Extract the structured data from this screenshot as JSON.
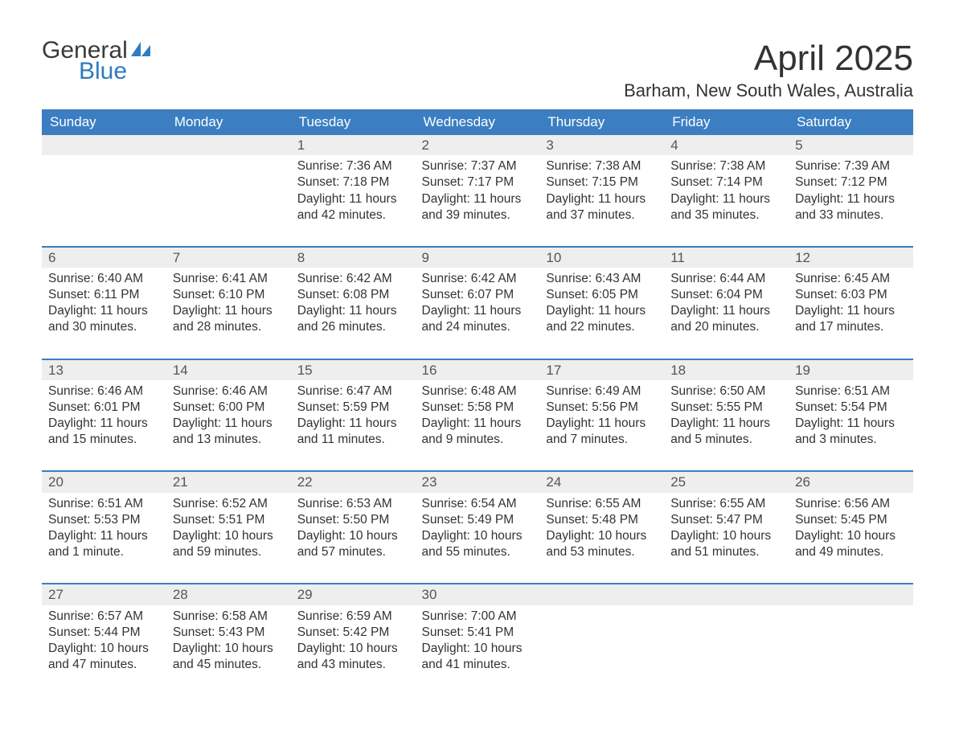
{
  "logo": {
    "word1": "General",
    "word2": "Blue"
  },
  "title": "April 2025",
  "location": "Barham, New South Wales, Australia",
  "colors": {
    "header_bg": "#3b7ec2",
    "header_fg": "#ffffff",
    "daynum_bg": "#eeeeee",
    "week_divider": "#3b7ec2",
    "text": "#333333",
    "logo_gray": "#3a3a3a",
    "logo_blue": "#2f7bbf",
    "page_bg": "#ffffff"
  },
  "weekdays": [
    "Sunday",
    "Monday",
    "Tuesday",
    "Wednesday",
    "Thursday",
    "Friday",
    "Saturday"
  ],
  "weeks": [
    [
      {
        "n": "",
        "d": ""
      },
      {
        "n": "",
        "d": ""
      },
      {
        "n": "1",
        "d": "Sunrise: 7:36 AM\nSunset: 7:18 PM\nDaylight: 11 hours and 42 minutes."
      },
      {
        "n": "2",
        "d": "Sunrise: 7:37 AM\nSunset: 7:17 PM\nDaylight: 11 hours and 39 minutes."
      },
      {
        "n": "3",
        "d": "Sunrise: 7:38 AM\nSunset: 7:15 PM\nDaylight: 11 hours and 37 minutes."
      },
      {
        "n": "4",
        "d": "Sunrise: 7:38 AM\nSunset: 7:14 PM\nDaylight: 11 hours and 35 minutes."
      },
      {
        "n": "5",
        "d": "Sunrise: 7:39 AM\nSunset: 7:12 PM\nDaylight: 11 hours and 33 minutes."
      }
    ],
    [
      {
        "n": "6",
        "d": "Sunrise: 6:40 AM\nSunset: 6:11 PM\nDaylight: 11 hours and 30 minutes."
      },
      {
        "n": "7",
        "d": "Sunrise: 6:41 AM\nSunset: 6:10 PM\nDaylight: 11 hours and 28 minutes."
      },
      {
        "n": "8",
        "d": "Sunrise: 6:42 AM\nSunset: 6:08 PM\nDaylight: 11 hours and 26 minutes."
      },
      {
        "n": "9",
        "d": "Sunrise: 6:42 AM\nSunset: 6:07 PM\nDaylight: 11 hours and 24 minutes."
      },
      {
        "n": "10",
        "d": "Sunrise: 6:43 AM\nSunset: 6:05 PM\nDaylight: 11 hours and 22 minutes."
      },
      {
        "n": "11",
        "d": "Sunrise: 6:44 AM\nSunset: 6:04 PM\nDaylight: 11 hours and 20 minutes."
      },
      {
        "n": "12",
        "d": "Sunrise: 6:45 AM\nSunset: 6:03 PM\nDaylight: 11 hours and 17 minutes."
      }
    ],
    [
      {
        "n": "13",
        "d": "Sunrise: 6:46 AM\nSunset: 6:01 PM\nDaylight: 11 hours and 15 minutes."
      },
      {
        "n": "14",
        "d": "Sunrise: 6:46 AM\nSunset: 6:00 PM\nDaylight: 11 hours and 13 minutes."
      },
      {
        "n": "15",
        "d": "Sunrise: 6:47 AM\nSunset: 5:59 PM\nDaylight: 11 hours and 11 minutes."
      },
      {
        "n": "16",
        "d": "Sunrise: 6:48 AM\nSunset: 5:58 PM\nDaylight: 11 hours and 9 minutes."
      },
      {
        "n": "17",
        "d": "Sunrise: 6:49 AM\nSunset: 5:56 PM\nDaylight: 11 hours and 7 minutes."
      },
      {
        "n": "18",
        "d": "Sunrise: 6:50 AM\nSunset: 5:55 PM\nDaylight: 11 hours and 5 minutes."
      },
      {
        "n": "19",
        "d": "Sunrise: 6:51 AM\nSunset: 5:54 PM\nDaylight: 11 hours and 3 minutes."
      }
    ],
    [
      {
        "n": "20",
        "d": "Sunrise: 6:51 AM\nSunset: 5:53 PM\nDaylight: 11 hours and 1 minute."
      },
      {
        "n": "21",
        "d": "Sunrise: 6:52 AM\nSunset: 5:51 PM\nDaylight: 10 hours and 59 minutes."
      },
      {
        "n": "22",
        "d": "Sunrise: 6:53 AM\nSunset: 5:50 PM\nDaylight: 10 hours and 57 minutes."
      },
      {
        "n": "23",
        "d": "Sunrise: 6:54 AM\nSunset: 5:49 PM\nDaylight: 10 hours and 55 minutes."
      },
      {
        "n": "24",
        "d": "Sunrise: 6:55 AM\nSunset: 5:48 PM\nDaylight: 10 hours and 53 minutes."
      },
      {
        "n": "25",
        "d": "Sunrise: 6:55 AM\nSunset: 5:47 PM\nDaylight: 10 hours and 51 minutes."
      },
      {
        "n": "26",
        "d": "Sunrise: 6:56 AM\nSunset: 5:45 PM\nDaylight: 10 hours and 49 minutes."
      }
    ],
    [
      {
        "n": "27",
        "d": "Sunrise: 6:57 AM\nSunset: 5:44 PM\nDaylight: 10 hours and 47 minutes."
      },
      {
        "n": "28",
        "d": "Sunrise: 6:58 AM\nSunset: 5:43 PM\nDaylight: 10 hours and 45 minutes."
      },
      {
        "n": "29",
        "d": "Sunrise: 6:59 AM\nSunset: 5:42 PM\nDaylight: 10 hours and 43 minutes."
      },
      {
        "n": "30",
        "d": "Sunrise: 7:00 AM\nSunset: 5:41 PM\nDaylight: 10 hours and 41 minutes."
      },
      {
        "n": "",
        "d": ""
      },
      {
        "n": "",
        "d": ""
      },
      {
        "n": "",
        "d": ""
      }
    ]
  ]
}
